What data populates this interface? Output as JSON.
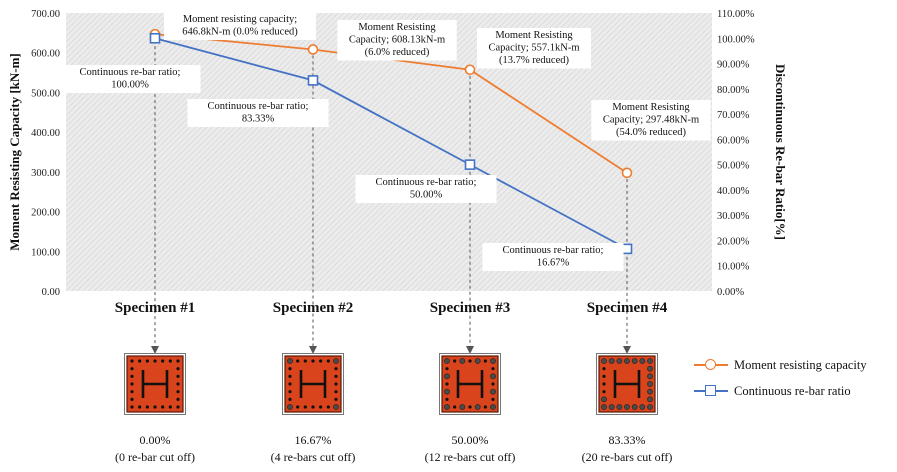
{
  "chart_data": {
    "type": "line",
    "categories": [
      "Specimen  #1",
      "Specimen  #2",
      "Specimen  #3",
      "Specimen  #4"
    ],
    "ylabel_left": "Moment Resisting Capacity [kN-m]",
    "ylabel_right": "Discontinuous Re-bar Ratio[%]",
    "ylim_left": [
      0,
      700
    ],
    "ylim_right": [
      0,
      110
    ],
    "yticks_left": [
      "0.00",
      "100.00",
      "200.00",
      "300.00",
      "400.00",
      "500.00",
      "600.00",
      "700.00"
    ],
    "yticks_right": [
      "0.00%",
      "10.00%",
      "20.00%",
      "30.00%",
      "40.00%",
      "50.00%",
      "60.00%",
      "70.00%",
      "80.00%",
      "90.00%",
      "100.00%",
      "110.00%"
    ],
    "series": [
      {
        "name": "Moment resisting capacity",
        "axis": "left",
        "color": "#ED7D31",
        "marker": "circle",
        "values": [
          646.8,
          608.13,
          557.1,
          297.48
        ]
      },
      {
        "name": "Continuous re-bar ratio",
        "axis": "right",
        "color": "#4472C4",
        "marker": "square",
        "values": [
          100.0,
          83.33,
          50.0,
          16.67
        ]
      }
    ],
    "annotations": {
      "moment": [
        [
          "Moment resisting  capacity;",
          "646.8kN-m (0.0% reduced)"
        ],
        [
          "Moment Resisting",
          "Capacity;  608.13kN-m",
          "(6.0% reduced)"
        ],
        [
          "Moment Resisting",
          "Capacity;  557.1kN-m",
          "(13.7% reduced)"
        ],
        [
          "Moment Resisting",
          "Capacity;  297.48kN-m",
          "(54.0% reduced)"
        ]
      ],
      "ratio": [
        [
          "Continuous  re-bar ratio;",
          "100.00%"
        ],
        [
          "Continuous  re-bar ratio;",
          "83.33%"
        ],
        [
          "Continuous  re-bar ratio;",
          "50.00%"
        ],
        [
          "Continuous  re-bar ratio;",
          "16.67%"
        ]
      ]
    },
    "sections": [
      {
        "percent": "0.00%",
        "note": "(0 re-bar cut off)",
        "cut": 0
      },
      {
        "percent": "16.67%",
        "note": "(4 re-bars cut off)",
        "cut": 4
      },
      {
        "percent": "50.00%",
        "note": "(12 re-bars cut off)",
        "cut": 12
      },
      {
        "percent": "83.33%",
        "note": "(20 re-bars cut off)",
        "cut": 20
      }
    ],
    "section_label": "H",
    "plot_background": "#e9e9e9",
    "legend_position": "bottom-right",
    "grid": false
  }
}
